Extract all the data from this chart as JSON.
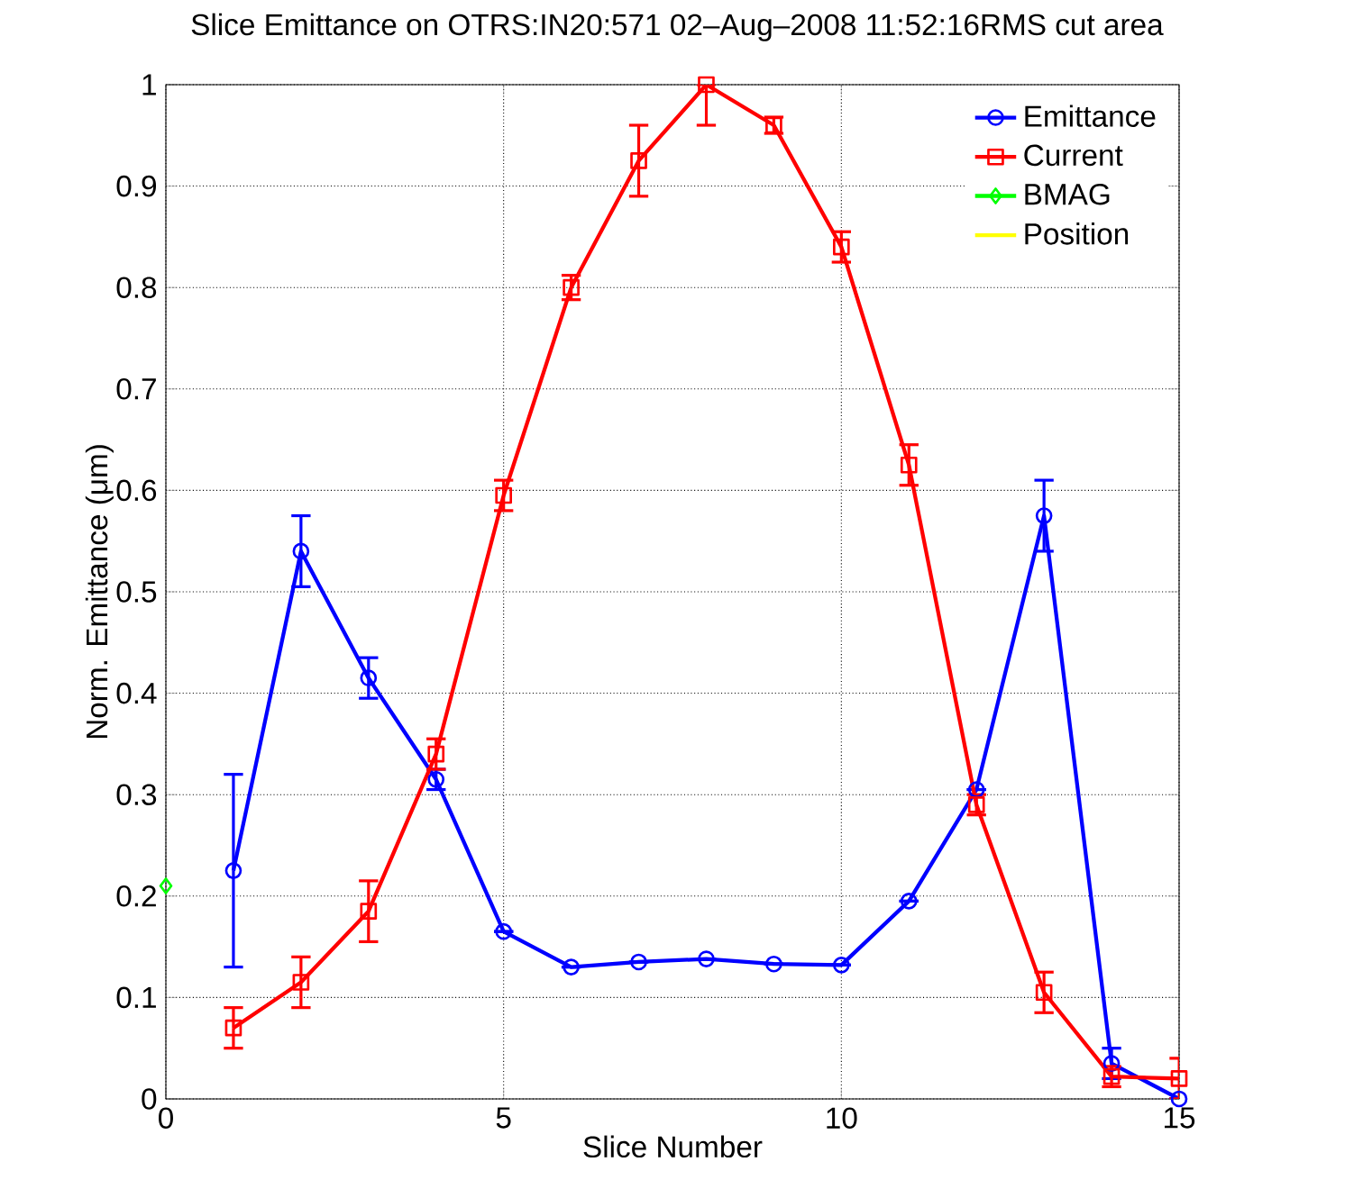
{
  "chart_data": {
    "type": "line",
    "title": "Slice Emittance on OTRS:IN20:571  02–Aug–2008 11:52:16RMS cut area",
    "xlabel": "Slice Number",
    "ylabel": "Norm. Emittance  (μm)",
    "xlim": [
      0,
      15
    ],
    "ylim": [
      0,
      1
    ],
    "xticks": [
      0,
      5,
      10,
      15
    ],
    "yticks": [
      0,
      0.1,
      0.2,
      0.3,
      0.4,
      0.5,
      0.6,
      0.7,
      0.8,
      0.9,
      1
    ],
    "grid": true,
    "legend": "top right",
    "series": [
      {
        "name": "Emittance",
        "color": "#0000ff",
        "marker": "circle",
        "x": [
          1,
          2,
          3,
          4,
          5,
          6,
          7,
          8,
          9,
          10,
          11,
          12,
          13,
          14,
          15
        ],
        "values": [
          0.225,
          0.54,
          0.415,
          0.315,
          0.165,
          0.13,
          0.135,
          0.138,
          0.133,
          0.132,
          0.195,
          0.305,
          0.575,
          0.035,
          0.0
        ],
        "errors": [
          [
            0.13,
            0.32
          ],
          0.035,
          0.02,
          0.01,
          null,
          null,
          null,
          null,
          null,
          null,
          null,
          null,
          0.035,
          [
            0.02,
            0.05
          ],
          null
        ]
      },
      {
        "name": "Current",
        "color": "#ff0000",
        "marker": "square",
        "x": [
          1,
          2,
          3,
          4,
          5,
          6,
          7,
          8,
          9,
          10,
          11,
          12,
          13,
          14,
          15
        ],
        "values": [
          0.07,
          0.115,
          0.185,
          0.34,
          0.595,
          0.8,
          0.925,
          1.0,
          0.96,
          0.84,
          0.625,
          0.29,
          0.105,
          0.022,
          0.02
        ],
        "errors": [
          0.02,
          0.025,
          0.03,
          0.015,
          0.015,
          0.012,
          0.035,
          [
            0.96,
            1.0
          ],
          0.008,
          0.015,
          0.02,
          0.01,
          0.02,
          0.01,
          [
            0.0,
            0.04
          ]
        ]
      },
      {
        "name": "BMAG",
        "color": "#00ff00",
        "marker": "diamond",
        "x": [
          0
        ],
        "values": [
          0.21
        ]
      },
      {
        "name": "Position",
        "color": "#ffff00",
        "marker": "none"
      }
    ]
  }
}
